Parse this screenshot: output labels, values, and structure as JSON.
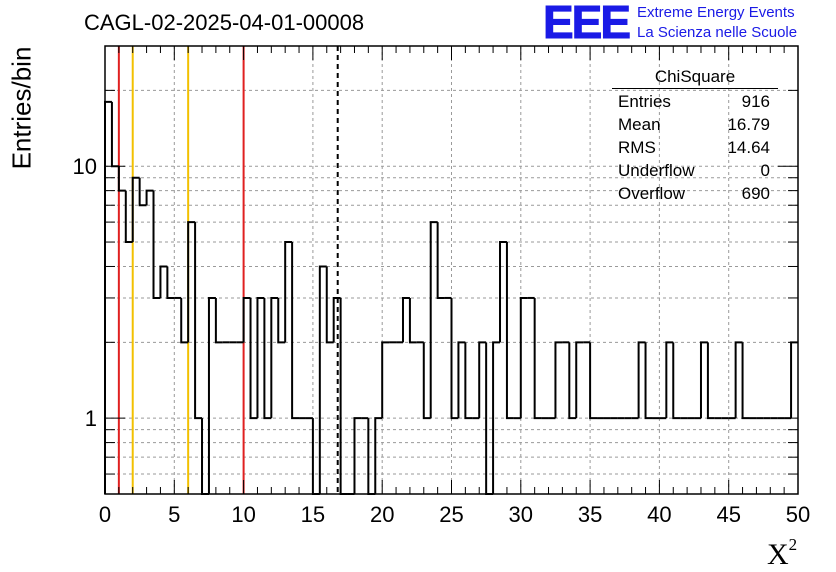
{
  "title": "CAGL-02-2025-04-01-00008",
  "logo": {
    "mark": "EEE",
    "line1": "Extreme Energy Events",
    "line2": "La Scienza nelle Scuole",
    "color": "#1a1ae6"
  },
  "stats": {
    "title": "ChiSquare",
    "rows": [
      {
        "label": "Entries",
        "value": "916"
      },
      {
        "label": "Mean",
        "value": "16.79"
      },
      {
        "label": "RMS",
        "value": "14.64"
      },
      {
        "label": "Underflow",
        "value": "0"
      },
      {
        "label": "Overflow",
        "value": "690"
      }
    ]
  },
  "chart_data": {
    "type": "bar",
    "style": "step-histogram",
    "title": "CAGL-02-2025-04-01-00008",
    "xlabel": "X",
    "xlabel_superscript": "2",
    "ylabel": "Entries/bin",
    "xlim": [
      0,
      50
    ],
    "ylim": [
      0.5,
      30
    ],
    "yscale": "log",
    "grid": true,
    "bin_width": 0.5,
    "x_ticks": [
      "0",
      "5",
      "10",
      "15",
      "20",
      "25",
      "30",
      "35",
      "40",
      "45",
      "50"
    ],
    "y_ticks": [
      "1",
      "10"
    ],
    "bin_lows": [
      0,
      0.5,
      1,
      1.5,
      2,
      2.5,
      3,
      3.5,
      4,
      4.5,
      5,
      5.5,
      6,
      6.5,
      7,
      7.5,
      8,
      8.5,
      9,
      9.5,
      10,
      10.5,
      11,
      11.5,
      12,
      12.5,
      13,
      13.5,
      14,
      14.5,
      15,
      15.5,
      16,
      16.5,
      17,
      17.5,
      18,
      18.5,
      19,
      19.5,
      20,
      20.5,
      21,
      21.5,
      22,
      22.5,
      23,
      23.5,
      24,
      24.5,
      25,
      25.5,
      26,
      26.5,
      27,
      27.5,
      28,
      28.5,
      29,
      29.5,
      30,
      30.5,
      31,
      31.5,
      32,
      32.5,
      33,
      33.5,
      34,
      34.5,
      35,
      35.5,
      36,
      36.5,
      37,
      37.5,
      38,
      38.5,
      39,
      39.5,
      40,
      40.5,
      41,
      41.5,
      42,
      42.5,
      43,
      43.5,
      44,
      44.5,
      45,
      45.5,
      46,
      46.5,
      47,
      47.5,
      48,
      48.5,
      49,
      49.5
    ],
    "counts": [
      18,
      10,
      8,
      5,
      9,
      7,
      8,
      3,
      4,
      3,
      3,
      2,
      6,
      1,
      0,
      3,
      2,
      2,
      2,
      2,
      3,
      1,
      3,
      1,
      3,
      2,
      5,
      1,
      1,
      1,
      0,
      4,
      2,
      3,
      0,
      0,
      1,
      1,
      0,
      1,
      2,
      2,
      2,
      3,
      2,
      2,
      1,
      6,
      3,
      3,
      1,
      2,
      1,
      1,
      2,
      0,
      2,
      5,
      1,
      1,
      3,
      3,
      1,
      1,
      1,
      2,
      2,
      1,
      2,
      2,
      1,
      1,
      1,
      1,
      1,
      1,
      1,
      2,
      1,
      1,
      1,
      2,
      1,
      1,
      1,
      1,
      2,
      1,
      1,
      1,
      1,
      2,
      1,
      1,
      1,
      1,
      1,
      1,
      1,
      2
    ],
    "vertical_lines": [
      {
        "x": 1,
        "color": "#e02020"
      },
      {
        "x": 2,
        "color": "#f2c000"
      },
      {
        "x": 6,
        "color": "#f2c000"
      },
      {
        "x": 10,
        "color": "#e02020"
      },
      {
        "x": 16.79,
        "color": "#000000",
        "dashed": true
      }
    ]
  }
}
